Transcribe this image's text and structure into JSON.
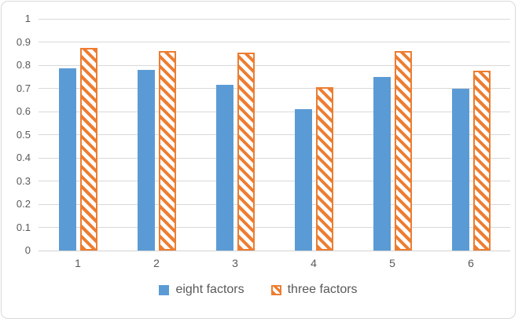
{
  "chart_data": {
    "type": "bar",
    "title": "",
    "xlabel": "",
    "ylabel": "",
    "categories": [
      "1",
      "2",
      "3",
      "4",
      "5",
      "6"
    ],
    "series": [
      {
        "name": "eight factors",
        "color": "#5b9bd5",
        "pattern": "solid",
        "values": [
          0.785,
          0.78,
          0.715,
          0.61,
          0.75,
          0.7
        ]
      },
      {
        "name": "three factors",
        "color": "#ed7d31",
        "pattern": "diagonal-hatch",
        "values": [
          0.875,
          0.86,
          0.855,
          0.705,
          0.86,
          0.775
        ]
      }
    ],
    "ylim": [
      0,
      1
    ],
    "ytick_step": 0.1,
    "ytick_labels": [
      "1",
      "0.9",
      "0.8",
      "0.7",
      "0.6",
      "0.5",
      "0.4",
      "0.3",
      "0.2",
      "0.1",
      "0"
    ],
    "yticks": [
      1,
      0.9,
      0.8,
      0.7,
      0.6,
      0.5,
      0.4,
      0.3,
      0.2,
      0.1,
      0
    ],
    "grid": true,
    "legend_position": "bottom"
  },
  "colors": {
    "bar_blue": "#5b9bd5",
    "bar_orange": "#ed7d31",
    "gridline": "#d9d9d9",
    "axis_text": "#595959",
    "legend_text": "#595959",
    "frame_border": "#d9d9d9",
    "background": "#ffffff"
  }
}
